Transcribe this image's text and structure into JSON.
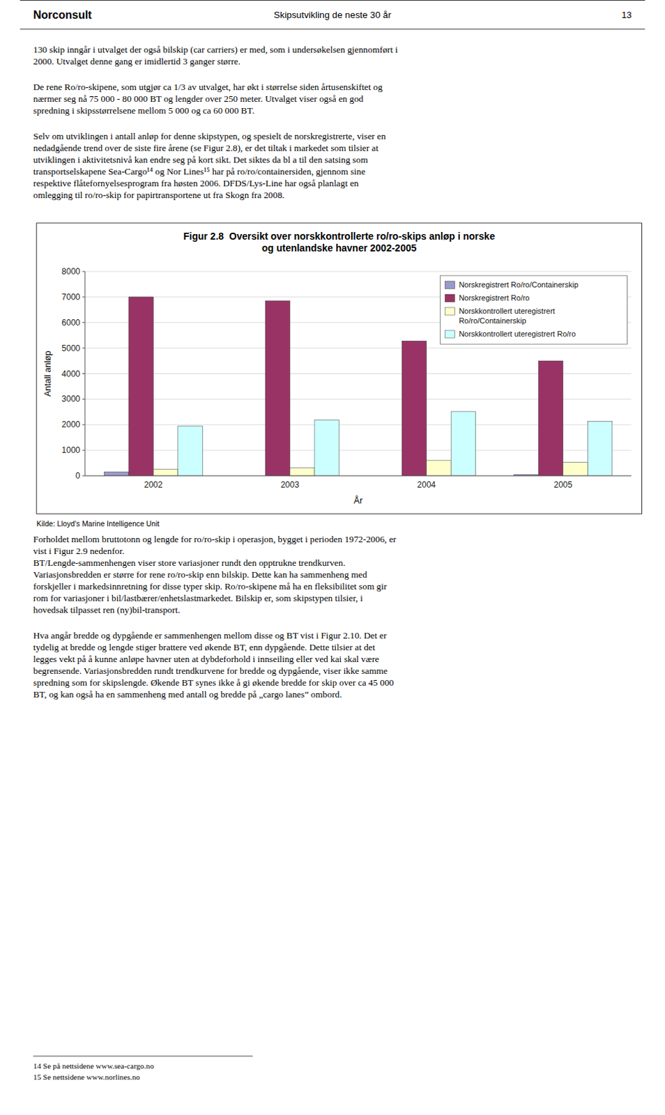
{
  "header_logo": "Norconsult",
  "header_text": "Skipsutvikling de neste 30 år",
  "header_page": "13",
  "paragraphs_before": [
    [
      "130 skip inngår i utvalget der også bilskip (car carriers) er med, som i undersøkelsen gjennomført i",
      "2000. Utvalget denne gang er imidlertid 3 ganger større."
    ],
    [
      "De rene Ro/ro-skipene, som utgjør ca 1/3 av utvalget, har økt i størrelse siden årtusenskiftet og",
      "nærmer seg nå 75 000 - 80 000 BT og lengder over 250 meter. Utvalget viser også en god",
      "spredning i skipsstørrelsene mellom 5 000 og ca 60 000 BT."
    ],
    [
      "Selv om utviklingen i antall anløp for denne skipstypen, og spesielt de norskregistrerte, viser en",
      "nedadgående trend over de siste fire årene (se Figur 2.8), er det tiltak i markedet som tilsier at",
      "utviklingen i aktivitetsnivå kan endre seg på kort sikt. Det siktes da bl a til den satsing som",
      "transportselskapene Sea-Cargo¹⁴ og Nor Lines¹⁵ har på ro/ro/containersiden, gjennom sine",
      "respektive flåtefornyelsesprogram fra høsten 2006. DFDS/Lys-Line har også planlagt en",
      "omlegging til ro/ro-skip for papirtransportene ut fra Skogn fra 2008."
    ]
  ],
  "chart_data": {
    "type": "bar",
    "title": "Figur 2.8  Oversikt over norskkontrollerte ro/ro-skips anløp i norske\nog utenlandske havner 2002-2005",
    "xlabel": "År",
    "ylabel": "Antall anløp",
    "categories": [
      "2002",
      "2003",
      "2004",
      "2005"
    ],
    "series": [
      {
        "name": "Norskregistrert Ro/ro/Containerskip",
        "color": "#9999cc",
        "values": [
          150,
          0,
          0,
          50
        ]
      },
      {
        "name": "Norskregistrert Ro/ro",
        "color": "#993366",
        "values": [
          7000,
          6850,
          5280,
          4500
        ]
      },
      {
        "name": "Norskkontrollert uteregistrert\nRo/ro/Containerskip",
        "color": "#ffffcc",
        "values": [
          250,
          310,
          600,
          530
        ]
      },
      {
        "name": "Norskkontrollert uteregistrert Ro/ro",
        "color": "#ccffff",
        "values": [
          1950,
          2180,
          2520,
          2130
        ]
      }
    ],
    "ylim": [
      0,
      8000
    ],
    "yticks": [
      0,
      1000,
      2000,
      3000,
      4000,
      5000,
      6000,
      7000,
      8000
    ],
    "grid": true,
    "legend": "upper right"
  },
  "source": "Kilde: Lloyd's Marine Intelligence Unit",
  "paragraphs_after": [
    [
      "Forholdet mellom bruttotonn og lengde for ro/ro-skip i operasjon, bygget i perioden 1972-2006, er",
      "vist i Figur 2.9 nedenfor.",
      "BT/Lengde-sammenhengen viser store variasjoner rundt den opptrukne trendkurven.",
      "Variasjonsbredden er større for rene ro/ro-skip enn bilskip. Dette kan ha sammenheng med",
      "forskjeller i markedsinnretning for disse typer skip. Ro/ro-skipene må ha en fleksibilitet som gir",
      "rom for variasjoner i bil/lastbærer/enhetslastmarkedet. Bilskip er, som skipstypen tilsier, i",
      "hovedsak tilpasset ren (ny)bil-transport."
    ],
    [
      "Hva angår bredde og dypgående er sammenhengen mellom disse og BT vist i Figur 2.10. Det er",
      "tydelig at bredde og lengde stiger brattere ved økende BT, enn dypgående. Dette tilsier at det",
      "legges vekt på å kunne anløpe havner uten at dybdeforhold i innseiling eller ved kai skal være",
      "begrensende. Variasjonsbredden rundt trendkurvene for bredde og dypgående, viser ikke samme",
      "spredning som for skipslengde. Økende BT synes ikke å gi økende bredde for skip over ca 45 000",
      "BT, og kan også ha en sammenheng med antall og bredde på „cargo lanes” ombord."
    ]
  ],
  "footnotes": [
    "14 Se på nettsidene www.sea-cargo.no",
    "15 Se nettsidene www.norlines.no"
  ]
}
